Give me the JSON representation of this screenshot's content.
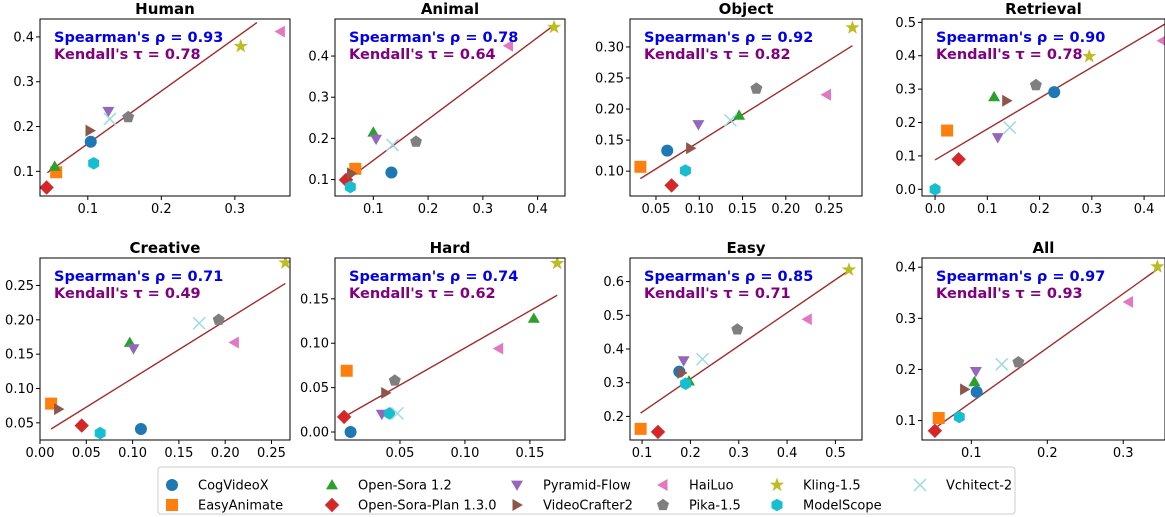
{
  "colors": {
    "spearman": "#0000ee",
    "kendall": "#800080",
    "fit_line": "#a52a2a",
    "axis": "#000000"
  },
  "legend": [
    {
      "name": "CogVideoX",
      "color": "#1f77b4",
      "marker": "circle"
    },
    {
      "name": "EasyAnimate",
      "color": "#ff7f0e",
      "marker": "square"
    },
    {
      "name": "Open-Sora 1.2",
      "color": "#2ca02c",
      "marker": "triangle-up"
    },
    {
      "name": "Open-Sora-Plan 1.3.0",
      "color": "#d62728",
      "marker": "diamond"
    },
    {
      "name": "Pyramid-Flow",
      "color": "#9467bd",
      "marker": "triangle-down"
    },
    {
      "name": "VideoCrafter2",
      "color": "#8c564b",
      "marker": "triangle-right"
    },
    {
      "name": "HaiLuo",
      "color": "#e377c2",
      "marker": "triangle-left"
    },
    {
      "name": "Pika-1.5",
      "color": "#7f7f7f",
      "marker": "pentagon"
    },
    {
      "name": "Kling-1.5",
      "color": "#bcbd22",
      "marker": "star"
    },
    {
      "name": "ModelScope",
      "color": "#17becf",
      "marker": "hexagon"
    },
    {
      "name": "Vchitect-2",
      "color": "#9edae5",
      "marker": "x"
    }
  ],
  "chart_data": [
    {
      "type": "scatter",
      "title": "Human",
      "spearman": "Spearman's ρ = 0.93",
      "kendall": "Kendall's τ = 0.78",
      "xlim": [
        0.035,
        0.375
      ],
      "ylim": [
        0.045,
        0.44
      ],
      "xticks": [
        0.1,
        0.2,
        0.3
      ],
      "xtick_labels": [
        "0.1",
        "0.2",
        "0.3"
      ],
      "yticks": [
        0.1,
        0.2,
        0.3,
        0.4
      ],
      "ytick_labels": [
        "0.1",
        "0.2",
        "0.3",
        "0.4"
      ],
      "fit": [
        [
          0.045,
          0.097
        ],
        [
          0.33,
          0.432
        ]
      ],
      "points": [
        [
          0.104,
          0.166
        ],
        [
          0.057,
          0.098
        ],
        [
          0.055,
          0.111
        ],
        [
          0.044,
          0.064
        ],
        [
          0.128,
          0.234
        ],
        [
          0.103,
          0.191
        ],
        [
          0.362,
          0.412
        ],
        [
          0.155,
          0.221
        ],
        [
          0.308,
          0.379
        ],
        [
          0.108,
          0.118
        ],
        [
          0.13,
          0.217
        ]
      ]
    },
    {
      "type": "scatter",
      "title": "Animal",
      "spearman": "Spearman's ρ = 0.78",
      "kendall": "Kendall's τ = 0.64",
      "xlim": [
        0.03,
        0.45
      ],
      "ylim": [
        0.06,
        0.49
      ],
      "xticks": [
        0.1,
        0.2,
        0.3,
        0.4
      ],
      "xtick_labels": [
        "0.1",
        "0.2",
        "0.3",
        "0.4"
      ],
      "yticks": [
        0.1,
        0.2,
        0.3,
        0.4
      ],
      "ytick_labels": [
        "0.1",
        "0.2",
        "0.3",
        "0.4"
      ],
      "fit": [
        [
          0.05,
          0.097
        ],
        [
          0.43,
          0.475
        ]
      ],
      "points": [
        [
          0.133,
          0.117
        ],
        [
          0.067,
          0.126
        ],
        [
          0.1,
          0.215
        ],
        [
          0.05,
          0.099
        ],
        [
          0.105,
          0.198
        ],
        [
          0.06,
          0.115
        ],
        [
          0.347,
          0.425
        ],
        [
          0.178,
          0.192
        ],
        [
          0.43,
          0.47
        ],
        [
          0.058,
          0.082
        ],
        [
          0.135,
          0.184
        ]
      ]
    },
    {
      "type": "scatter",
      "title": "Object",
      "spearman": "Spearman's ρ = 0.92",
      "kendall": "Kendall's τ = 0.82",
      "xlim": [
        0.02,
        0.288
      ],
      "ylim": [
        0.06,
        0.345
      ],
      "xticks": [
        0.05,
        0.1,
        0.15,
        0.2,
        0.25
      ],
      "xtick_labels": [
        "0.05",
        "0.10",
        "0.15",
        "0.20",
        "0.25"
      ],
      "yticks": [
        0.1,
        0.15,
        0.2,
        0.25,
        0.3
      ],
      "ytick_labels": [
        "0.10",
        "0.15",
        "0.20",
        "0.25",
        "0.30"
      ],
      "fit": [
        [
          0.032,
          0.088
        ],
        [
          0.277,
          0.302
        ]
      ],
      "points": [
        [
          0.063,
          0.133
        ],
        [
          0.032,
          0.107
        ],
        [
          0.146,
          0.19
        ],
        [
          0.068,
          0.077
        ],
        [
          0.099,
          0.175
        ],
        [
          0.09,
          0.137
        ],
        [
          0.247,
          0.223
        ],
        [
          0.166,
          0.233
        ],
        [
          0.277,
          0.331
        ],
        [
          0.084,
          0.101
        ],
        [
          0.136,
          0.182
        ]
      ]
    },
    {
      "type": "scatter",
      "title": "Retrieval",
      "spearman": "Spearman's ρ = 0.90",
      "kendall": "Kendall's τ = 0.78",
      "xlim": [
        -0.025,
        0.44
      ],
      "ylim": [
        -0.02,
        0.51
      ],
      "xticks": [
        0.0,
        0.1,
        0.2,
        0.3,
        0.4
      ],
      "xtick_labels": [
        "0.0",
        "0.1",
        "0.2",
        "0.3",
        "0.4"
      ],
      "yticks": [
        0.0,
        0.1,
        0.2,
        0.3,
        0.4,
        0.5
      ],
      "ytick_labels": [
        "0.0",
        "0.1",
        "0.2",
        "0.3",
        "0.4",
        "0.5"
      ],
      "fit": [
        [
          0.0,
          0.088
        ],
        [
          0.44,
          0.495
        ]
      ],
      "points": [
        [
          0.228,
          0.291
        ],
        [
          0.023,
          0.176
        ],
        [
          0.113,
          0.277
        ],
        [
          0.045,
          0.09
        ],
        [
          0.12,
          0.155
        ],
        [
          0.137,
          0.265
        ],
        [
          0.435,
          0.445
        ],
        [
          0.193,
          0.312
        ],
        [
          0.295,
          0.398
        ],
        [
          0.0,
          0.0
        ],
        [
          0.143,
          0.185
        ]
      ]
    },
    {
      "type": "scatter",
      "title": "Creative",
      "spearman": "Spearman's ρ = 0.71",
      "kendall": "Kendall's τ = 0.49",
      "xlim": [
        0.0,
        0.27
      ],
      "ylim": [
        0.025,
        0.29
      ],
      "xticks": [
        0.0,
        0.05,
        0.1,
        0.15,
        0.2,
        0.25
      ],
      "xtick_labels": [
        "0.00",
        "0.05",
        "0.10",
        "0.15",
        "0.20",
        "0.25"
      ],
      "yticks": [
        0.05,
        0.1,
        0.15,
        0.2,
        0.25
      ],
      "ytick_labels": [
        "0.05",
        "0.10",
        "0.15",
        "0.20",
        "0.25"
      ],
      "fit": [
        [
          0.012,
          0.041
        ],
        [
          0.265,
          0.253
        ]
      ],
      "points": [
        [
          0.109,
          0.041
        ],
        [
          0.012,
          0.078
        ],
        [
          0.097,
          0.167
        ],
        [
          0.045,
          0.046
        ],
        [
          0.101,
          0.158
        ],
        [
          0.02,
          0.07
        ],
        [
          0.21,
          0.167
        ],
        [
          0.193,
          0.2
        ],
        [
          0.265,
          0.283
        ],
        [
          0.065,
          0.035
        ],
        [
          0.172,
          0.195
        ]
      ]
    },
    {
      "type": "scatter",
      "title": "Hard",
      "spearman": "Spearman's ρ = 0.74",
      "kendall": "Kendall's τ = 0.62",
      "xlim": [
        0.0,
        0.177
      ],
      "ylim": [
        -0.009,
        0.196
      ],
      "xticks": [
        0.05,
        0.1,
        0.15
      ],
      "xtick_labels": [
        "0.05",
        "0.10",
        "0.15"
      ],
      "yticks": [
        0.0,
        0.05,
        0.1,
        0.15
      ],
      "ytick_labels": [
        "0.00",
        "0.05",
        "0.10",
        "0.15"
      ],
      "fit": [
        [
          0.007,
          0.017
        ],
        [
          0.171,
          0.154
        ]
      ],
      "points": [
        [
          0.012,
          0.0
        ],
        [
          0.009,
          0.069
        ],
        [
          0.153,
          0.128
        ],
        [
          0.007,
          0.017
        ],
        [
          0.036,
          0.02
        ],
        [
          0.039,
          0.044
        ],
        [
          0.126,
          0.094
        ],
        [
          0.046,
          0.058
        ],
        [
          0.171,
          0.19
        ],
        [
          0.042,
          0.021
        ],
        [
          0.048,
          0.021
        ]
      ]
    },
    {
      "type": "scatter",
      "title": "Easy",
      "spearman": "Spearman's ρ = 0.85",
      "kendall": "Kendall's τ = 0.71",
      "xlim": [
        0.075,
        0.555
      ],
      "ylim": [
        0.13,
        0.67
      ],
      "xticks": [
        0.1,
        0.2,
        0.3,
        0.4,
        0.5
      ],
      "xtick_labels": [
        "0.1",
        "0.2",
        "0.3",
        "0.4",
        "0.5"
      ],
      "yticks": [
        0.2,
        0.3,
        0.4,
        0.5,
        0.6
      ],
      "ytick_labels": [
        "0.2",
        "0.3",
        "0.4",
        "0.5",
        "0.6"
      ],
      "fit": [
        [
          0.097,
          0.21
        ],
        [
          0.535,
          0.64
        ]
      ],
      "points": [
        [
          0.177,
          0.333
        ],
        [
          0.097,
          0.163
        ],
        [
          0.197,
          0.305
        ],
        [
          0.133,
          0.154
        ],
        [
          0.186,
          0.365
        ],
        [
          0.182,
          0.329
        ],
        [
          0.442,
          0.488
        ],
        [
          0.297,
          0.458
        ],
        [
          0.528,
          0.635
        ],
        [
          0.19,
          0.297
        ],
        [
          0.225,
          0.37
        ]
      ]
    },
    {
      "type": "scatter",
      "title": "All",
      "spearman": "Spearman's ρ = 0.97",
      "kendall": "Kendall's τ = 0.93",
      "xlim": [
        0.035,
        0.355
      ],
      "ylim": [
        0.062,
        0.418
      ],
      "xticks": [
        0.1,
        0.2,
        0.3
      ],
      "xtick_labels": [
        "0.1",
        "0.2",
        "0.3"
      ],
      "yticks": [
        0.1,
        0.2,
        0.3,
        0.4
      ],
      "ytick_labels": [
        "0.1",
        "0.2",
        "0.3",
        "0.4"
      ],
      "fit": [
        [
          0.05,
          0.083
        ],
        [
          0.345,
          0.396
        ]
      ],
      "points": [
        [
          0.107,
          0.156
        ],
        [
          0.057,
          0.105
        ],
        [
          0.104,
          0.176
        ],
        [
          0.052,
          0.08
        ],
        [
          0.106,
          0.196
        ],
        [
          0.091,
          0.161
        ],
        [
          0.307,
          0.332
        ],
        [
          0.162,
          0.214
        ],
        [
          0.345,
          0.401
        ],
        [
          0.084,
          0.107
        ],
        [
          0.14,
          0.21
        ]
      ]
    }
  ]
}
